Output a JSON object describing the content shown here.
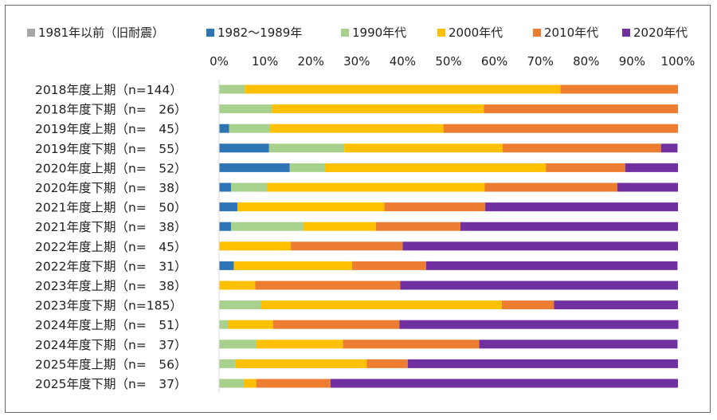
{
  "chart_data": {
    "type": "bar",
    "orientation": "horizontal",
    "stacked": "percent",
    "legend_position": "top",
    "x_axis_position": "top",
    "grid": false,
    "xlim": [
      0,
      100
    ],
    "x_ticks": [
      "0%",
      "10%",
      "20%",
      "30%",
      "40%",
      "50%",
      "60%",
      "70%",
      "80%",
      "90%",
      "100%"
    ],
    "categories": [
      "2018年度上期（n=144）",
      "2018年度下期（n=　26）",
      "2019年度上期（n=　45）",
      "2019年度下期（n=　55）",
      "2020年度上期（n=　52）",
      "2020年度下期（n=　38）",
      "2021年度上期（n=　50）",
      "2021年度下期（n=　38）",
      "2022年度上期（n=　45）",
      "2022年度下期（n=　31）",
      "2023年度上期（n=　38）",
      "2023年度下期（n=185）",
      "2024年度上期（n=　51）",
      "2024年度下期（n=　37）",
      "2025年度上期（n=　56）",
      "2025年度下期（n=　37）"
    ],
    "series": [
      {
        "name": "1981年以前（旧耐震）",
        "color": "#a6a6a6",
        "values": [
          0,
          0,
          0,
          0,
          0,
          0,
          0,
          0,
          0,
          0,
          0,
          0,
          0,
          0,
          0,
          0
        ]
      },
      {
        "name": "1982～1989年",
        "color": "#2e75b6",
        "values": [
          0,
          0,
          2.2,
          10.9,
          15.4,
          2.6,
          4.0,
          2.6,
          0,
          3.2,
          0,
          0,
          0,
          0,
          0,
          0
        ]
      },
      {
        "name": "1990年代",
        "color": "#a9d18e",
        "values": [
          5.6,
          11.5,
          8.9,
          16.4,
          7.7,
          7.9,
          0,
          15.8,
          0,
          0,
          0,
          9.2,
          2.0,
          8.1,
          3.6,
          5.4
        ]
      },
      {
        "name": "2000年代",
        "color": "#ffc000",
        "values": [
          68.8,
          46.2,
          37.8,
          34.5,
          48.1,
          47.4,
          32.0,
          15.8,
          15.6,
          25.8,
          7.9,
          52.4,
          9.8,
          18.9,
          28.6,
          2.7
        ]
      },
      {
        "name": "2010年代",
        "color": "#ed7d31",
        "values": [
          25.6,
          42.3,
          51.1,
          34.5,
          17.3,
          28.9,
          22.0,
          18.4,
          24.4,
          16.1,
          31.6,
          11.4,
          27.5,
          29.7,
          8.9,
          16.2
        ]
      },
      {
        "name": "2020年代",
        "color": "#7030a0",
        "values": [
          0,
          0,
          0,
          3.6,
          11.5,
          13.2,
          42.0,
          47.4,
          60.0,
          54.8,
          60.5,
          27.0,
          60.8,
          43.2,
          58.9,
          75.7
        ]
      }
    ]
  }
}
